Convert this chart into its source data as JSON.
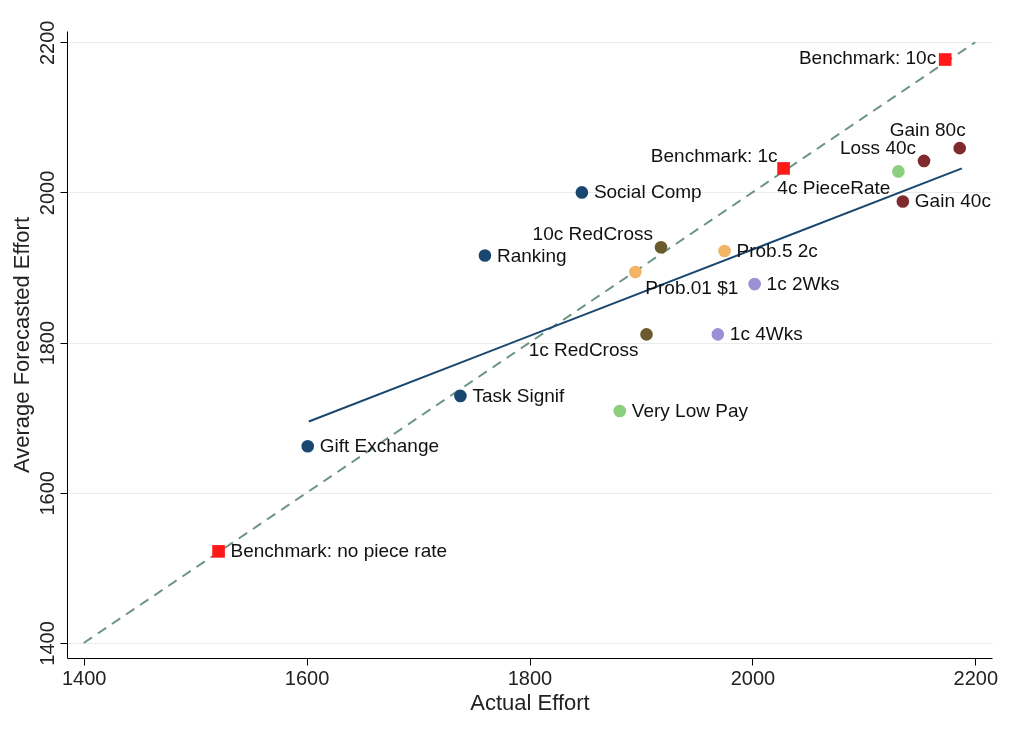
{
  "chart_data": {
    "type": "scatter",
    "xlabel": "Actual Effort",
    "ylabel": "Average Forecasted Effort",
    "xlim": [
      1385,
      2215
    ],
    "ylim": [
      1380,
      2215
    ],
    "xticks": [
      1400,
      1600,
      1800,
      2000,
      2200
    ],
    "yticks": [
      1400,
      1600,
      1800,
      2000,
      2200
    ],
    "grid": "y",
    "series": [
      {
        "type": "line",
        "color": "#6b9483",
        "line_style": "dashed",
        "marker": "none",
        "x": [
          1400,
          2200
        ],
        "values": [
          1400,
          2200
        ]
      },
      {
        "type": "line",
        "color": "#1a476f",
        "line_style": "solid",
        "marker": "none",
        "x": [
          1602,
          2188
        ],
        "values": [
          1695,
          2032
        ]
      },
      {
        "color": "#ff1a1a",
        "marker": "square",
        "x": [
          2173,
          2028,
          1521
        ],
        "values": [
          2177,
          2032,
          1522
        ]
      },
      {
        "color": "#7f2a2e",
        "marker": "circle",
        "x": [
          2186,
          2154,
          2135
        ],
        "values": [
          2059,
          2042,
          1988
        ]
      },
      {
        "color": "#8ccf7e",
        "marker": "circle",
        "x": [
          2131,
          1881
        ],
        "values": [
          2028,
          1709
        ]
      },
      {
        "color": "#1a476f",
        "marker": "circle",
        "x": [
          1847,
          1760,
          1738,
          1601
        ],
        "values": [
          2000,
          1916,
          1729,
          1662
        ]
      },
      {
        "color": "#6b5a2b",
        "marker": "circle",
        "x": [
          1918,
          1905
        ],
        "values": [
          1927,
          1811
        ]
      },
      {
        "color": "#f2b565",
        "marker": "circle",
        "x": [
          1975,
          1895
        ],
        "values": [
          1922,
          1894
        ]
      },
      {
        "color": "#9b8fd6",
        "marker": "circle",
        "x": [
          2002,
          1969
        ],
        "values": [
          1878,
          1811
        ]
      }
    ],
    "annotations": [
      {
        "text": "Benchmark: 10c",
        "x": 2173,
        "y": 2177
      },
      {
        "text": "Benchmark: 1c",
        "x": 2028,
        "y": 2032
      },
      {
        "text": "Benchmark: no piece rate",
        "x": 1521,
        "y": 1522
      },
      {
        "text": "Gain 80c",
        "x": 2186,
        "y": 2059
      },
      {
        "text": "Loss 40c",
        "x": 2154,
        "y": 2042
      },
      {
        "text": "4c PieceRate",
        "x": 2131,
        "y": 2028
      },
      {
        "text": "Gain 40c",
        "x": 2135,
        "y": 1988
      },
      {
        "text": "Social Comp",
        "x": 1847,
        "y": 2000
      },
      {
        "text": "Ranking",
        "x": 1760,
        "y": 1916
      },
      {
        "text": "10c RedCross",
        "x": 1918,
        "y": 1927
      },
      {
        "text": "Prob.5 2c",
        "x": 1975,
        "y": 1922
      },
      {
        "text": "Prob.01 $1",
        "x": 1895,
        "y": 1894
      },
      {
        "text": "1c 2Wks",
        "x": 2002,
        "y": 1878
      },
      {
        "text": "1c RedCross",
        "x": 1905,
        "y": 1811
      },
      {
        "text": "1c 4Wks",
        "x": 1969,
        "y": 1811
      },
      {
        "text": "Task Signif",
        "x": 1738,
        "y": 1729
      },
      {
        "text": "Very Low Pay",
        "x": 1881,
        "y": 1709
      },
      {
        "text": "Gift Exchange",
        "x": 1601,
        "y": 1662
      }
    ]
  }
}
